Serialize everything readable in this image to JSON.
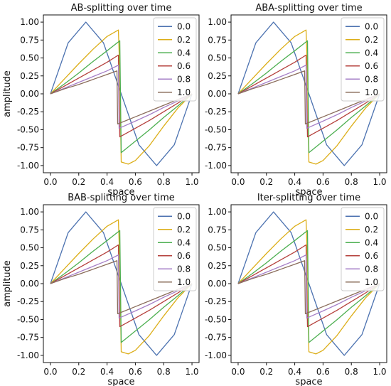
{
  "chart_data": [
    {
      "type": "line",
      "title": "AB-splitting over time",
      "xlabel": "space",
      "ylabel": "amplitude",
      "xlim": [
        -0.05,
        1.05
      ],
      "ylim": [
        -1.1,
        1.1
      ],
      "xticks": [
        "0.0",
        "0.2",
        "0.4",
        "0.6",
        "0.8",
        "1.0"
      ],
      "yticks": [
        "1.00",
        "0.75",
        "0.50",
        "0.25",
        "0.00",
        "-0.25",
        "-0.50",
        "-0.75",
        "-1.00"
      ],
      "legend_position": "top-right",
      "series": [
        {
          "name": "0.0",
          "color": "#4c72b0",
          "x": [
            0,
            0.125,
            0.25,
            0.375,
            0.5,
            0.625,
            0.75,
            0.875,
            1.0
          ],
          "values": [
            0,
            0.71,
            1.0,
            0.71,
            0,
            -0.71,
            -1.0,
            -0.71,
            0
          ]
        },
        {
          "name": "0.2",
          "color": "#dcae18",
          "x": [
            0,
            0.1,
            0.2,
            0.3,
            0.4,
            0.48,
            0.49,
            0.5,
            0.55,
            0.6,
            0.7,
            0.8,
            0.9,
            1.0
          ],
          "values": [
            0,
            0.21,
            0.42,
            0.62,
            0.8,
            0.89,
            0.3,
            -0.95,
            -0.98,
            -0.93,
            -0.72,
            -0.45,
            -0.2,
            0
          ]
        },
        {
          "name": "0.4",
          "color": "#4caf50",
          "x": [
            0,
            0.1,
            0.2,
            0.3,
            0.4,
            0.49,
            0.5,
            0.6,
            0.7,
            0.8,
            0.9,
            1.0
          ],
          "values": [
            0,
            0.14,
            0.29,
            0.45,
            0.6,
            0.74,
            -0.82,
            -0.66,
            -0.5,
            -0.33,
            -0.17,
            0
          ]
        },
        {
          "name": "0.6",
          "color": "#b5403c",
          "x": [
            0,
            0.1,
            0.2,
            0.3,
            0.4,
            0.48,
            0.49,
            0.6,
            0.7,
            0.8,
            0.9,
            1.0
          ],
          "values": [
            0,
            0.11,
            0.22,
            0.33,
            0.44,
            0.54,
            -0.6,
            -0.48,
            -0.37,
            -0.25,
            -0.13,
            0
          ]
        },
        {
          "name": "0.8",
          "color": "#a67fc7",
          "x": [
            0,
            0.1,
            0.2,
            0.3,
            0.4,
            0.48,
            0.485,
            0.6,
            0.7,
            0.8,
            0.9,
            1.0
          ],
          "values": [
            0,
            0.08,
            0.16,
            0.24,
            0.32,
            0.4,
            -0.48,
            -0.38,
            -0.29,
            -0.19,
            -0.1,
            0
          ]
        },
        {
          "name": "1.0",
          "color": "#8a6c5a",
          "x": [
            0,
            0.1,
            0.2,
            0.3,
            0.4,
            0.47,
            0.475,
            0.6,
            0.7,
            0.8,
            0.9,
            1.0
          ],
          "values": [
            0,
            0.07,
            0.13,
            0.2,
            0.27,
            0.32,
            -0.42,
            -0.32,
            -0.24,
            -0.16,
            -0.08,
            0
          ]
        }
      ]
    },
    {
      "type": "line",
      "title": "ABA-splitting over time",
      "xlabel": "space",
      "ylabel": "",
      "xlim": [
        -0.05,
        1.05
      ],
      "ylim": [
        -1.1,
        1.1
      ],
      "xticks": [
        "0.0",
        "0.2",
        "0.4",
        "0.6",
        "0.8",
        "1.0"
      ],
      "yticks": [
        "1.00",
        "0.75",
        "0.50",
        "0.25",
        "0.00",
        "-0.25",
        "-0.50",
        "-0.75",
        "-1.00"
      ],
      "legend_position": "top-right",
      "series": [
        {
          "name": "0.0",
          "color": "#4c72b0",
          "x": [
            0,
            0.125,
            0.25,
            0.375,
            0.5,
            0.625,
            0.75,
            0.875,
            1.0
          ],
          "values": [
            0,
            0.71,
            1.0,
            0.71,
            0,
            -0.71,
            -1.0,
            -0.71,
            0
          ]
        },
        {
          "name": "0.2",
          "color": "#dcae18",
          "x": [
            0,
            0.1,
            0.2,
            0.3,
            0.4,
            0.48,
            0.49,
            0.5,
            0.55,
            0.6,
            0.7,
            0.8,
            0.9,
            1.0
          ],
          "values": [
            0,
            0.21,
            0.42,
            0.62,
            0.8,
            0.89,
            0.3,
            -0.95,
            -0.98,
            -0.93,
            -0.72,
            -0.45,
            -0.2,
            0
          ]
        },
        {
          "name": "0.4",
          "color": "#4caf50",
          "x": [
            0,
            0.1,
            0.2,
            0.3,
            0.4,
            0.49,
            0.5,
            0.6,
            0.7,
            0.8,
            0.9,
            1.0
          ],
          "values": [
            0,
            0.14,
            0.29,
            0.45,
            0.6,
            0.74,
            -0.82,
            -0.66,
            -0.5,
            -0.33,
            -0.17,
            0
          ]
        },
        {
          "name": "0.6",
          "color": "#b5403c",
          "x": [
            0,
            0.1,
            0.2,
            0.3,
            0.4,
            0.48,
            0.49,
            0.6,
            0.7,
            0.8,
            0.9,
            1.0
          ],
          "values": [
            0,
            0.11,
            0.22,
            0.33,
            0.44,
            0.54,
            -0.6,
            -0.48,
            -0.37,
            -0.25,
            -0.13,
            0
          ]
        },
        {
          "name": "0.8",
          "color": "#a67fc7",
          "x": [
            0,
            0.1,
            0.2,
            0.3,
            0.4,
            0.48,
            0.485,
            0.6,
            0.7,
            0.8,
            0.9,
            1.0
          ],
          "values": [
            0,
            0.08,
            0.16,
            0.24,
            0.32,
            0.4,
            -0.48,
            -0.38,
            -0.29,
            -0.19,
            -0.1,
            0
          ]
        },
        {
          "name": "1.0",
          "color": "#8a6c5a",
          "x": [
            0,
            0.1,
            0.2,
            0.3,
            0.4,
            0.47,
            0.475,
            0.6,
            0.7,
            0.8,
            0.9,
            1.0
          ],
          "values": [
            0,
            0.07,
            0.13,
            0.2,
            0.27,
            0.32,
            -0.42,
            -0.32,
            -0.24,
            -0.16,
            -0.08,
            0
          ]
        }
      ]
    },
    {
      "type": "line",
      "title": "BAB-splitting over time",
      "xlabel": "space",
      "ylabel": "amplitude",
      "xlim": [
        -0.05,
        1.05
      ],
      "ylim": [
        -1.1,
        1.1
      ],
      "xticks": [
        "0.0",
        "0.2",
        "0.4",
        "0.6",
        "0.8",
        "1.0"
      ],
      "yticks": [
        "1.00",
        "0.75",
        "0.50",
        "0.25",
        "0.00",
        "-0.25",
        "-0.50",
        "-0.75",
        "-1.00"
      ],
      "legend_position": "top-right",
      "series": [
        {
          "name": "0.0",
          "color": "#4c72b0",
          "x": [
            0,
            0.125,
            0.25,
            0.375,
            0.5,
            0.625,
            0.75,
            0.875,
            1.0
          ],
          "values": [
            0,
            0.71,
            1.0,
            0.71,
            0,
            -0.71,
            -1.0,
            -0.71,
            0
          ]
        },
        {
          "name": "0.2",
          "color": "#dcae18",
          "x": [
            0,
            0.1,
            0.2,
            0.3,
            0.4,
            0.48,
            0.49,
            0.5,
            0.55,
            0.6,
            0.7,
            0.8,
            0.9,
            1.0
          ],
          "values": [
            0,
            0.21,
            0.42,
            0.62,
            0.8,
            0.89,
            0.3,
            -0.95,
            -0.98,
            -0.93,
            -0.72,
            -0.45,
            -0.2,
            0
          ]
        },
        {
          "name": "0.4",
          "color": "#4caf50",
          "x": [
            0,
            0.1,
            0.2,
            0.3,
            0.4,
            0.49,
            0.5,
            0.6,
            0.7,
            0.8,
            0.9,
            1.0
          ],
          "values": [
            0,
            0.14,
            0.29,
            0.45,
            0.6,
            0.74,
            -0.82,
            -0.66,
            -0.5,
            -0.33,
            -0.17,
            0
          ]
        },
        {
          "name": "0.6",
          "color": "#b5403c",
          "x": [
            0,
            0.1,
            0.2,
            0.3,
            0.4,
            0.48,
            0.49,
            0.6,
            0.7,
            0.8,
            0.9,
            1.0
          ],
          "values": [
            0,
            0.11,
            0.22,
            0.33,
            0.44,
            0.54,
            -0.6,
            -0.48,
            -0.37,
            -0.25,
            -0.13,
            0
          ]
        },
        {
          "name": "0.8",
          "color": "#a67fc7",
          "x": [
            0,
            0.1,
            0.2,
            0.3,
            0.4,
            0.48,
            0.485,
            0.6,
            0.7,
            0.8,
            0.9,
            1.0
          ],
          "values": [
            0,
            0.08,
            0.16,
            0.24,
            0.32,
            0.4,
            -0.48,
            -0.38,
            -0.29,
            -0.19,
            -0.1,
            0
          ]
        },
        {
          "name": "1.0",
          "color": "#8a6c5a",
          "x": [
            0,
            0.1,
            0.2,
            0.3,
            0.4,
            0.47,
            0.475,
            0.6,
            0.7,
            0.8,
            0.9,
            1.0
          ],
          "values": [
            0,
            0.07,
            0.13,
            0.2,
            0.27,
            0.32,
            -0.42,
            -0.32,
            -0.24,
            -0.16,
            -0.08,
            0
          ]
        }
      ]
    },
    {
      "type": "line",
      "title": "Iter-splitting over time",
      "xlabel": "space",
      "ylabel": "",
      "xlim": [
        -0.05,
        1.05
      ],
      "ylim": [
        -1.1,
        1.1
      ],
      "xticks": [
        "0.0",
        "0.2",
        "0.4",
        "0.6",
        "0.8",
        "1.0"
      ],
      "yticks": [
        "1.00",
        "0.75",
        "0.50",
        "0.25",
        "0.00",
        "-0.25",
        "-0.50",
        "-0.75",
        "-1.00"
      ],
      "legend_position": "top-right",
      "series": [
        {
          "name": "0.0",
          "color": "#4c72b0",
          "x": [
            0,
            0.125,
            0.25,
            0.375,
            0.5,
            0.625,
            0.75,
            0.875,
            1.0
          ],
          "values": [
            0,
            0.71,
            1.0,
            0.71,
            0,
            -0.71,
            -1.0,
            -0.71,
            0
          ]
        },
        {
          "name": "0.2",
          "color": "#dcae18",
          "x": [
            0,
            0.1,
            0.2,
            0.3,
            0.4,
            0.48,
            0.49,
            0.5,
            0.55,
            0.6,
            0.7,
            0.8,
            0.9,
            1.0
          ],
          "values": [
            0,
            0.21,
            0.42,
            0.62,
            0.8,
            0.89,
            0.3,
            -0.95,
            -0.98,
            -0.93,
            -0.72,
            -0.45,
            -0.2,
            0
          ]
        },
        {
          "name": "0.4",
          "color": "#4caf50",
          "x": [
            0,
            0.1,
            0.2,
            0.3,
            0.4,
            0.49,
            0.5,
            0.6,
            0.7,
            0.8,
            0.9,
            1.0
          ],
          "values": [
            0,
            0.14,
            0.29,
            0.45,
            0.6,
            0.74,
            -0.82,
            -0.66,
            -0.5,
            -0.33,
            -0.17,
            0
          ]
        },
        {
          "name": "0.6",
          "color": "#b5403c",
          "x": [
            0,
            0.1,
            0.2,
            0.3,
            0.4,
            0.48,
            0.49,
            0.6,
            0.7,
            0.8,
            0.9,
            1.0
          ],
          "values": [
            0,
            0.11,
            0.22,
            0.33,
            0.44,
            0.54,
            -0.6,
            -0.48,
            -0.37,
            -0.25,
            -0.13,
            0
          ]
        },
        {
          "name": "0.8",
          "color": "#a67fc7",
          "x": [
            0,
            0.1,
            0.2,
            0.3,
            0.4,
            0.48,
            0.485,
            0.6,
            0.7,
            0.8,
            0.9,
            1.0
          ],
          "values": [
            0,
            0.08,
            0.16,
            0.24,
            0.32,
            0.4,
            -0.48,
            -0.38,
            -0.29,
            -0.19,
            -0.1,
            0
          ]
        },
        {
          "name": "1.0",
          "color": "#8a6c5a",
          "x": [
            0,
            0.1,
            0.2,
            0.3,
            0.4,
            0.47,
            0.475,
            0.6,
            0.7,
            0.8,
            0.9,
            1.0
          ],
          "values": [
            0,
            0.07,
            0.13,
            0.2,
            0.27,
            0.32,
            -0.42,
            -0.32,
            -0.24,
            -0.16,
            -0.08,
            0
          ]
        }
      ]
    }
  ]
}
